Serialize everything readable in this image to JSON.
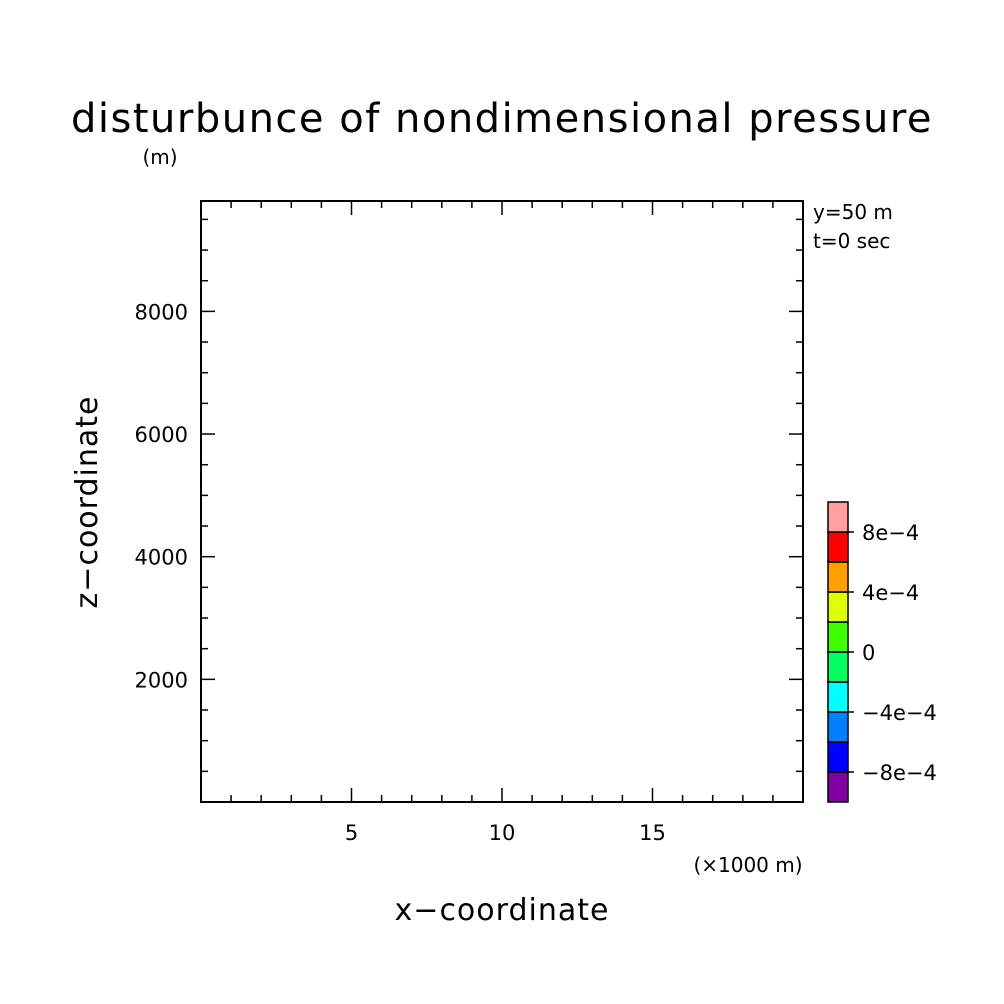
{
  "chart_data": {
    "type": "heatmap",
    "title": "disturbunce of nondimensional pressure",
    "xlabel": "x−coordinate",
    "ylabel": "z−coordinate",
    "x_unit": "(×1000 m)",
    "y_unit": "(m)",
    "xlim": [
      0,
      20
    ],
    "ylim": [
      0,
      9800
    ],
    "x_ticks": [
      5,
      10,
      15
    ],
    "y_ticks": [
      2000,
      4000,
      6000,
      8000
    ],
    "x_tick_labels": [
      "5",
      "10",
      "15"
    ],
    "y_tick_labels": [
      "2000",
      "4000",
      "6000",
      "8000"
    ],
    "annotations": [
      "y=50 m",
      "t=0 sec"
    ],
    "data": [],
    "colorbar": {
      "range": [
        -0.001,
        0.001
      ],
      "colors": [
        "#8000a0",
        "#0000ff",
        "#0080ff",
        "#00ffff",
        "#00ff60",
        "#40ff00",
        "#e0ff00",
        "#ffa000",
        "#ff0000",
        "#ffa0a0"
      ],
      "tick_values": [
        -0.0008,
        -0.0004,
        0,
        0.0004,
        0.0008
      ],
      "tick_labels": [
        "−8e−4",
        "−4e−4",
        "0",
        "4e−4",
        "8e−4"
      ]
    }
  }
}
